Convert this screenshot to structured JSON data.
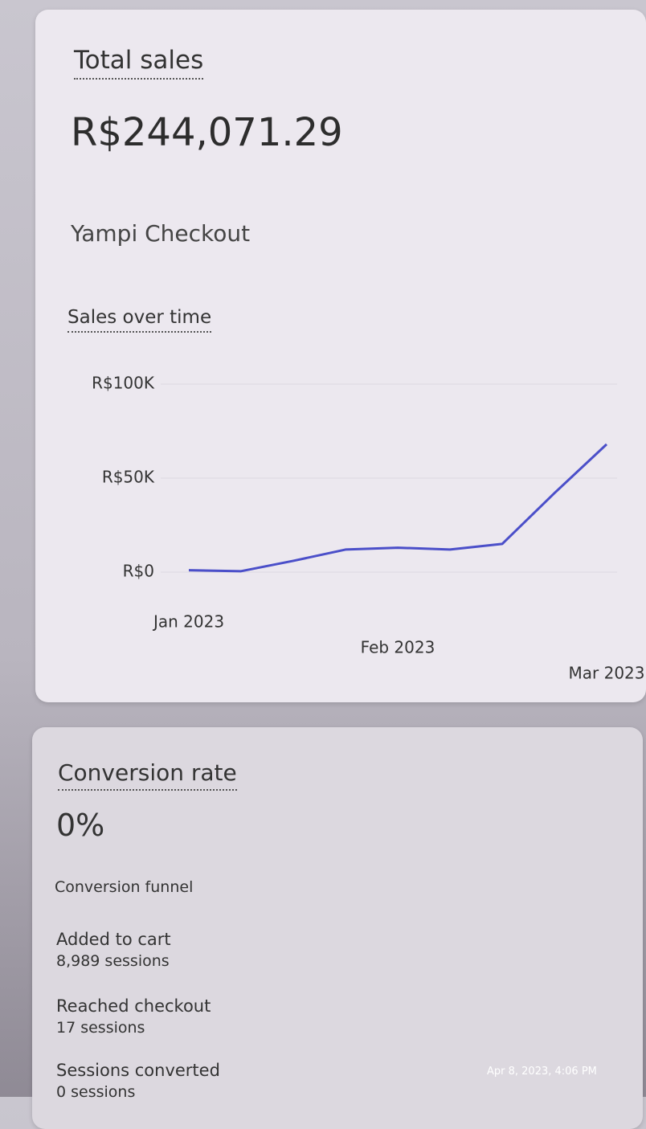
{
  "total_sales": {
    "title": "Total sales",
    "amount": "R$244,071.29",
    "source": "Yampi Checkout"
  },
  "chart_data": {
    "type": "line",
    "title": "Sales over time",
    "categories": [
      "Jan 2023",
      null,
      null,
      null,
      "Feb 2023",
      null,
      null,
      null,
      "Mar 2023"
    ],
    "series": [
      {
        "name": "Total sales",
        "color": "#4b4fc9",
        "values": [
          1000,
          500,
          6000,
          12000,
          13000,
          12000,
          15000,
          42000,
          68000
        ]
      }
    ],
    "ylim": [
      0,
      100000
    ],
    "yticks": [
      {
        "value": 0,
        "label": "R$0"
      },
      {
        "value": 50000,
        "label": "R$50K"
      },
      {
        "value": 100000,
        "label": "R$100K"
      }
    ],
    "grid": true
  },
  "conversion": {
    "title": "Conversion rate",
    "rate": "0%",
    "funnel_title": "Conversion funnel",
    "steps": [
      {
        "label": "Added to cart",
        "sessions": "8,989 sessions"
      },
      {
        "label": "Reached checkout",
        "sessions": "17 sessions"
      },
      {
        "label": "Sessions converted",
        "sessions": "0 sessions"
      }
    ]
  },
  "timestamp": "Apr 8, 2023, 4:06 PM"
}
